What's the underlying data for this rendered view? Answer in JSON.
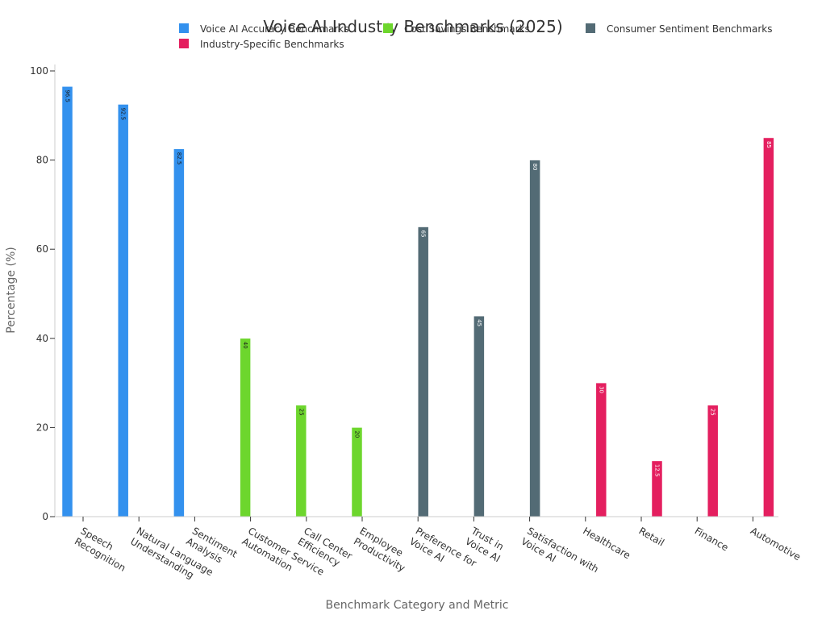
{
  "chart_data": {
    "type": "bar",
    "title": "Voice AI Industry Benchmarks (2025)",
    "xlabel": "Benchmark Category and Metric",
    "ylabel": "Percentage (%)",
    "ylim": [
      0,
      100
    ],
    "yticks": [
      0,
      20,
      40,
      60,
      80,
      100
    ],
    "grid": false,
    "legend_position": "top",
    "categories": [
      "Speech\nRecognition",
      "Natural Language\nUnderstanding",
      "Sentiment\nAnalysis",
      "Customer Service\nAutomation",
      "Call Center\nEfficiency",
      "Employee\nProductivity",
      "Preference for\nVoice AI",
      "Trust in\nVoice AI",
      "Satisfaction with\nVoice AI",
      "Healthcare",
      "Retail",
      "Finance",
      "Automotive"
    ],
    "series": [
      {
        "name": "Voice AI Accuracy Benchmarks",
        "color": "#3391ee",
        "values": [
          96.5,
          92.5,
          82.5,
          null,
          null,
          null,
          null,
          null,
          null,
          null,
          null,
          null,
          null
        ]
      },
      {
        "name": "Cost Savings Benchmarks",
        "color": "#6dd62d",
        "values": [
          null,
          null,
          null,
          40,
          25,
          20,
          null,
          null,
          null,
          null,
          null,
          null,
          null
        ]
      },
      {
        "name": "Consumer Sentiment Benchmarks",
        "color": "#536b75",
        "values": [
          null,
          null,
          null,
          null,
          null,
          null,
          65,
          45,
          80,
          null,
          null,
          null,
          null
        ]
      },
      {
        "name": "Industry-Specific Benchmarks",
        "color": "#e41f5f",
        "values": [
          null,
          null,
          null,
          null,
          null,
          null,
          null,
          null,
          null,
          30,
          12.5,
          25,
          85
        ]
      }
    ],
    "data_labels": [
      "96.5",
      "92.5",
      "82.5",
      "40",
      "25",
      "20",
      "65",
      "45",
      "80",
      "30",
      "12.5",
      "25",
      "85"
    ]
  }
}
